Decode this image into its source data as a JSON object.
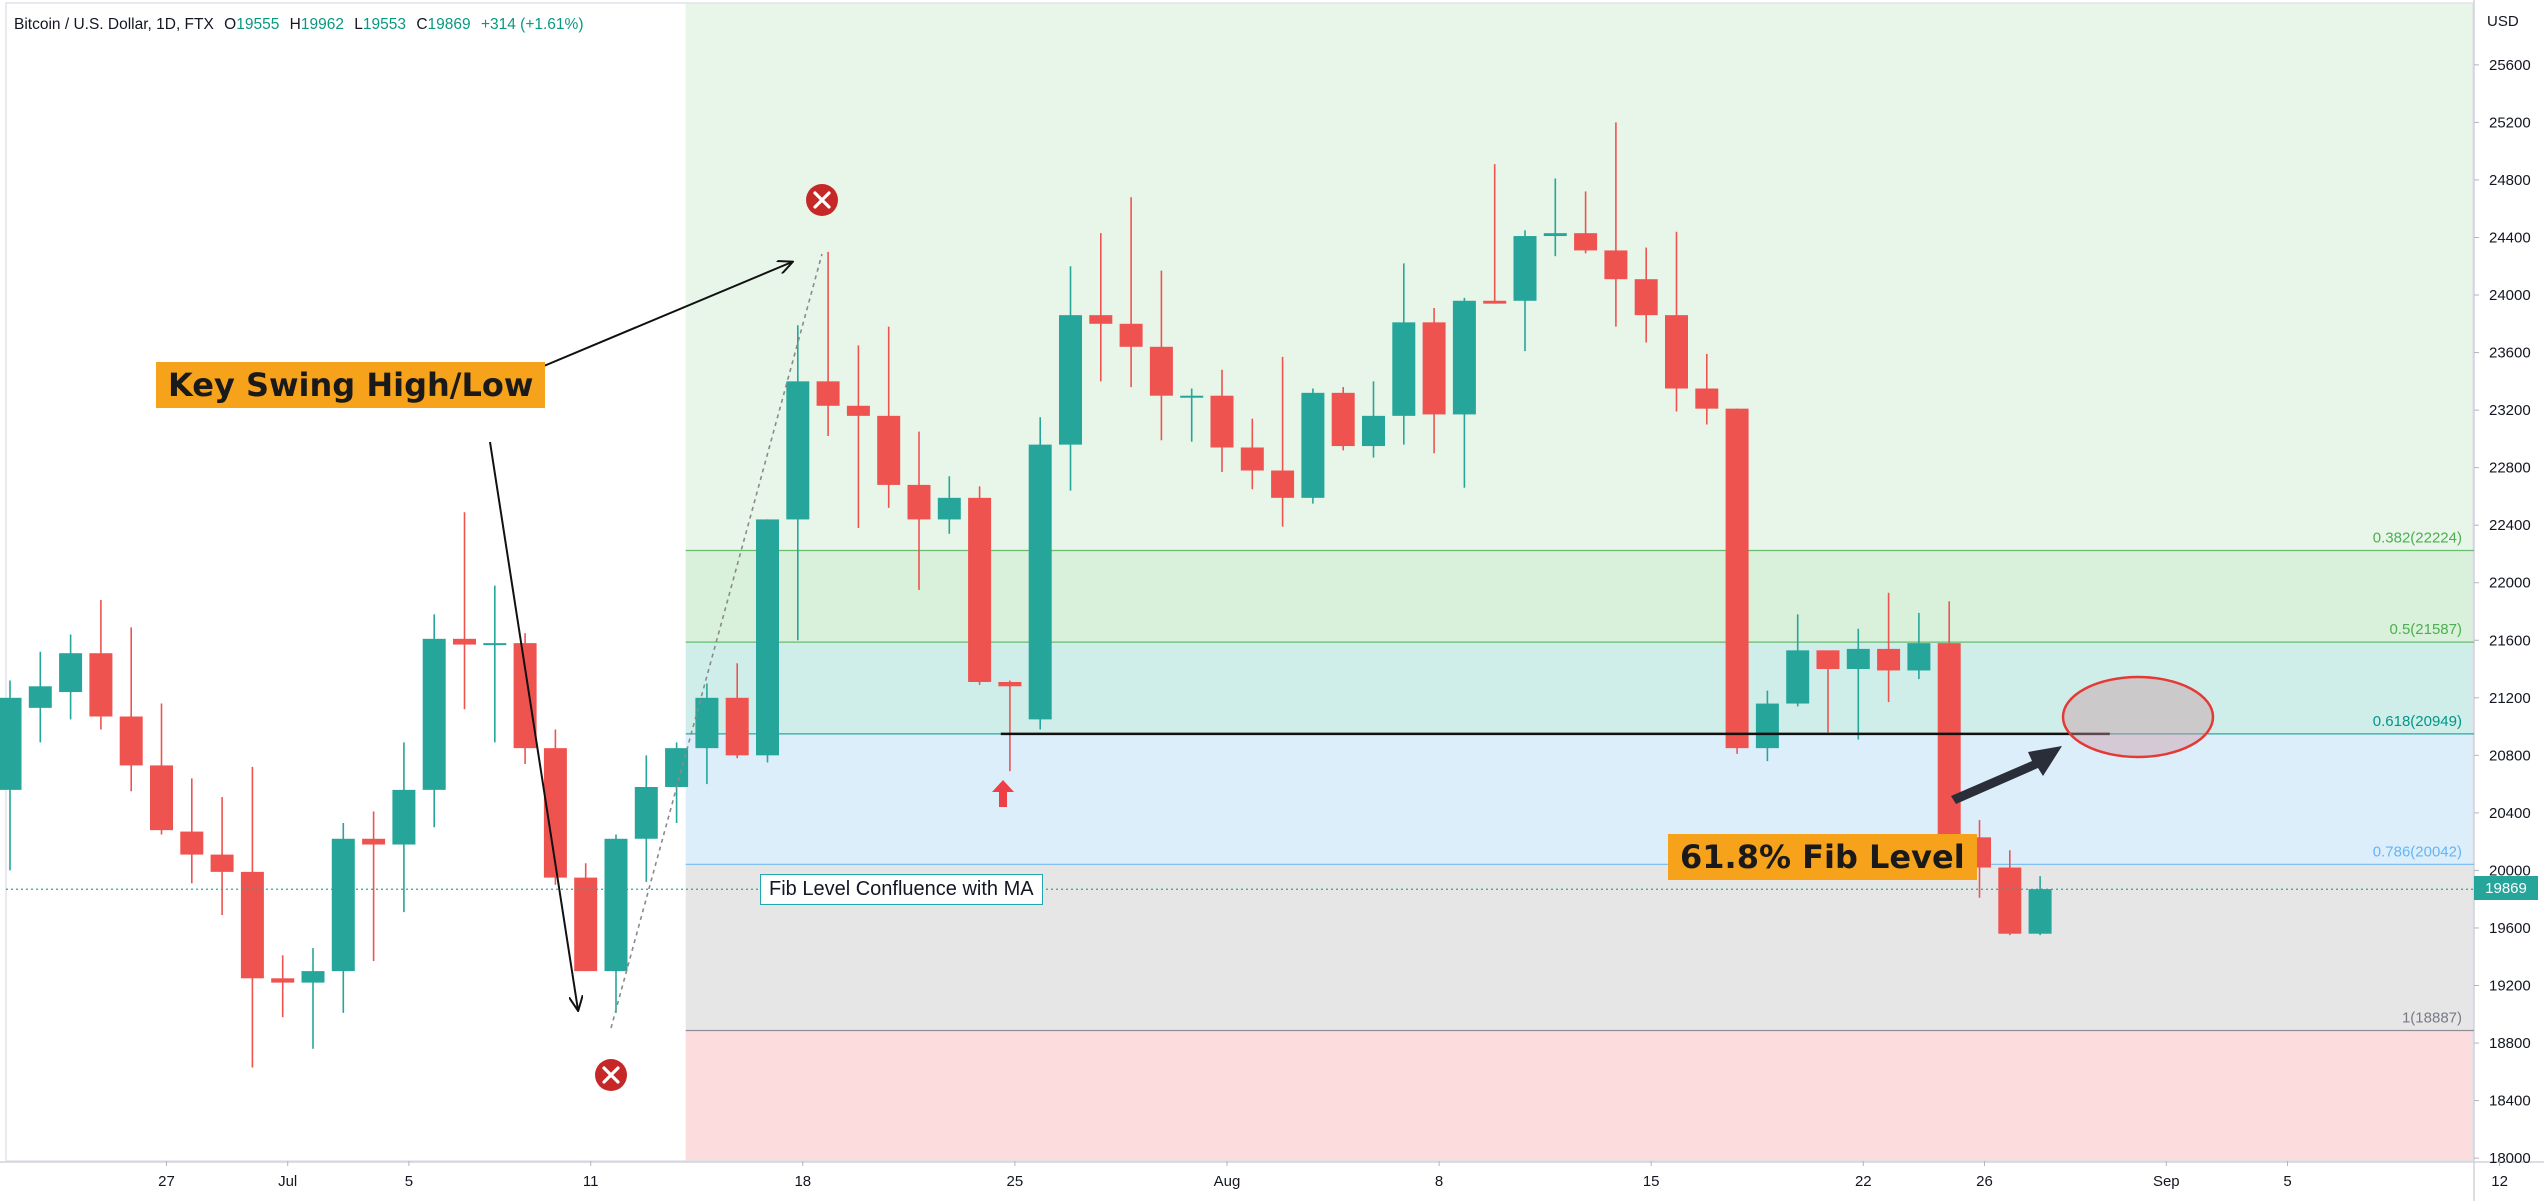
{
  "header": {
    "symbol": "Bitcoin / U.S. Dollar, 1D, FTX",
    "open_key": "O",
    "open": "19555",
    "high_key": "H",
    "high": "19962",
    "low_key": "L",
    "low": "19553",
    "close_key": "C",
    "close": "19869",
    "change": "+314 (+1.61%)"
  },
  "annotations": {
    "key_swing": "Key Swing High/Low",
    "fib_618": "61.8% Fib Level",
    "confluence": "Fib Level Confluence with MA"
  },
  "chart_data": {
    "type": "candlestick",
    "currency_label": "USD",
    "last_price_label": "19869",
    "last_price": 19869,
    "ylim": [
      17980,
      26030
    ],
    "y_ticks": [
      18000,
      18400,
      18800,
      19200,
      19600,
      20000,
      20400,
      20800,
      21200,
      21600,
      22000,
      22400,
      22800,
      23200,
      23600,
      24000,
      24400,
      24800,
      25200,
      25600
    ],
    "x_range_days": [
      -2,
      75
    ],
    "x_ticks": [
      {
        "label": "27",
        "day": 3
      },
      {
        "label": "Jul",
        "day": 7
      },
      {
        "label": "5",
        "day": 11
      },
      {
        "label": "11",
        "day": 17
      },
      {
        "label": "18",
        "day": 24
      },
      {
        "label": "25",
        "day": 31
      },
      {
        "label": "Aug",
        "day": 38
      },
      {
        "label": "8",
        "day": 45
      },
      {
        "label": "15",
        "day": 52
      },
      {
        "label": "22",
        "day": 59
      },
      {
        "label": "26",
        "day": 63
      },
      {
        "label": "Sep",
        "day": 69
      },
      {
        "label": "5",
        "day": 73
      },
      {
        "label": "12",
        "day": 80
      }
    ],
    "up_color": "#26a69a",
    "down_color": "#ef5350",
    "first_day": -2,
    "candles": [
      [
        20560,
        21320,
        20000,
        21200
      ],
      [
        21130,
        21520,
        20890,
        21280
      ],
      [
        21240,
        21640,
        21050,
        21510
      ],
      [
        21510,
        21880,
        20980,
        21070
      ],
      [
        21070,
        21690,
        20550,
        20730
      ],
      [
        20730,
        21160,
        20250,
        20280
      ],
      [
        20270,
        20640,
        19910,
        20110
      ],
      [
        20110,
        20510,
        19690,
        19990
      ],
      [
        19990,
        20720,
        18630,
        19250
      ],
      [
        19250,
        19410,
        18980,
        19220
      ],
      [
        19220,
        19460,
        18760,
        19300
      ],
      [
        19300,
        20330,
        19010,
        20220
      ],
      [
        20220,
        20410,
        19370,
        20180
      ],
      [
        20180,
        20890,
        19710,
        20560
      ],
      [
        20560,
        21780,
        20300,
        21610
      ],
      [
        21610,
        22490,
        21120,
        21570
      ],
      [
        21570,
        21980,
        20890,
        21580
      ],
      [
        21580,
        21650,
        20740,
        20850
      ],
      [
        20850,
        20980,
        19900,
        19950
      ],
      [
        19950,
        20050,
        19300,
        19300
      ],
      [
        19300,
        20250,
        19010,
        20220
      ],
      [
        20220,
        20800,
        19920,
        20580
      ],
      [
        20580,
        20890,
        20330,
        20850
      ],
      [
        20850,
        21300,
        20600,
        21200
      ],
      [
        21200,
        21440,
        20780,
        20800
      ],
      [
        20800,
        22440,
        20750,
        22440
      ],
      [
        22440,
        23790,
        21600,
        23400
      ],
      [
        23400,
        24300,
        23020,
        23230
      ],
      [
        23230,
        23650,
        22380,
        23160
      ],
      [
        23160,
        23780,
        22520,
        22680
      ],
      [
        22680,
        23050,
        21950,
        22440
      ],
      [
        22440,
        22740,
        22340,
        22590
      ],
      [
        22590,
        22670,
        21290,
        21310
      ],
      [
        21310,
        21320,
        20690,
        21280
      ],
      [
        21050,
        23150,
        20980,
        22960
      ],
      [
        22960,
        24200,
        22640,
        23860
      ],
      [
        23860,
        24430,
        23400,
        23800
      ],
      [
        23800,
        24680,
        23360,
        23640
      ],
      [
        23640,
        24170,
        22990,
        23300
      ],
      [
        23300,
        23350,
        22980,
        23300
      ],
      [
        23300,
        23480,
        22770,
        22940
      ],
      [
        22940,
        23140,
        22650,
        22780
      ],
      [
        22780,
        23570,
        22390,
        22590
      ],
      [
        22590,
        23350,
        22550,
        23320
      ],
      [
        23320,
        23360,
        22920,
        22950
      ],
      [
        22950,
        23400,
        22870,
        23160
      ],
      [
        23160,
        24220,
        22960,
        23810
      ],
      [
        23810,
        23910,
        22900,
        23170
      ],
      [
        23170,
        23980,
        22660,
        23960
      ],
      [
        23960,
        24910,
        23940,
        23940
      ],
      [
        23960,
        24450,
        23610,
        24410
      ],
      [
        24410,
        24810,
        24270,
        24430
      ],
      [
        24430,
        24720,
        24290,
        24310
      ],
      [
        24310,
        25200,
        23780,
        24110
      ],
      [
        24110,
        24330,
        23670,
        23860
      ],
      [
        23860,
        24440,
        23190,
        23350
      ],
      [
        23350,
        23590,
        23100,
        23210
      ],
      [
        23210,
        23210,
        20810,
        20850
      ],
      [
        20850,
        21250,
        20760,
        21160
      ],
      [
        21160,
        21780,
        21140,
        21530
      ],
      [
        21530,
        21520,
        20960,
        21400
      ],
      [
        21400,
        21680,
        20910,
        21540
      ],
      [
        21540,
        21930,
        21170,
        21390
      ],
      [
        21390,
        21790,
        21330,
        21580
      ],
      [
        21580,
        21870,
        20070,
        20230
      ],
      [
        20230,
        20350,
        19810,
        20020
      ],
      [
        20020,
        20140,
        19550,
        19560
      ],
      [
        19560,
        19960,
        19550,
        19870
      ]
    ],
    "fib_levels": [
      {
        "label": "0.382(22224)",
        "value": 22224,
        "color": "#4caf50"
      },
      {
        "label": "0.5(21587)",
        "value": 21587,
        "color": "#4caf50"
      },
      {
        "label": "0.618(20949)",
        "value": 20949,
        "color": "#009688"
      },
      {
        "label": "0.786(20042)",
        "value": 20042,
        "color": "#64b5f6"
      },
      {
        "label": "1(18887)",
        "value": 18887,
        "color": "#787b86"
      }
    ],
    "fib_start_day": 20.3,
    "support_line": {
      "from_day": 30.7,
      "to_day": 67.3,
      "value": 20949
    }
  }
}
